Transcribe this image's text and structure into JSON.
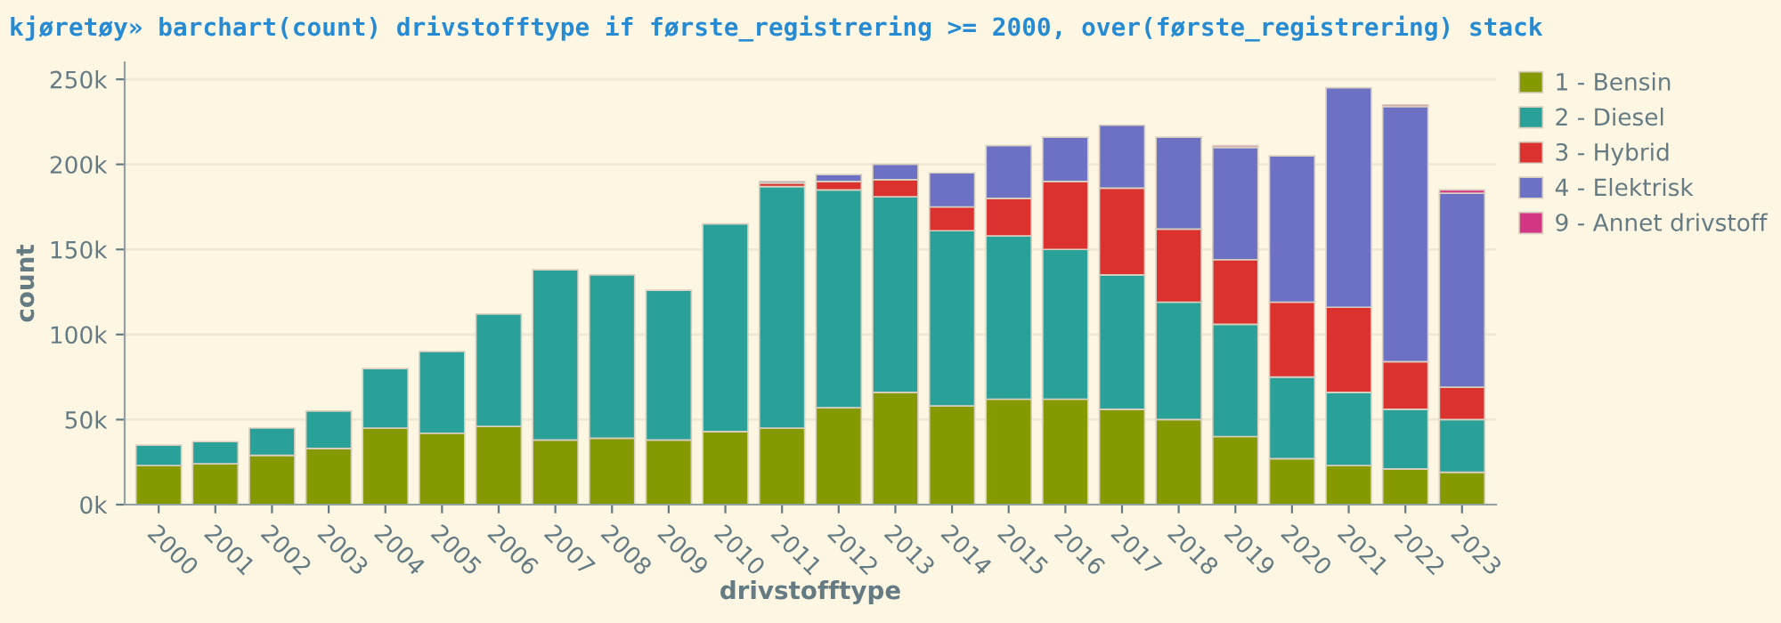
{
  "chart_data": {
    "type": "bar",
    "stacked": true,
    "title": "kjøretøy» barchart(count) drivstofftype if første_registrering >= 2000, over(første_registrering) stack",
    "xlabel": "drivstofftype",
    "ylabel": "count",
    "categories": [
      "2000",
      "2001",
      "2002",
      "2003",
      "2004",
      "2005",
      "2006",
      "2007",
      "2008",
      "2009",
      "2010",
      "2011",
      "2012",
      "2013",
      "2014",
      "2015",
      "2016",
      "2017",
      "2018",
      "2019",
      "2020",
      "2021",
      "2022",
      "2023"
    ],
    "series": [
      {
        "name": "1 - Bensin",
        "color": "#859900",
        "values": [
          23,
          24,
          29,
          33,
          45,
          42,
          46,
          38,
          39,
          38,
          43,
          45,
          57,
          66,
          58,
          62,
          62,
          56,
          50,
          40,
          27,
          23,
          21,
          19
        ]
      },
      {
        "name": "2 - Diesel",
        "color": "#2aa198",
        "values": [
          12,
          13,
          16,
          22,
          35,
          48,
          66,
          100,
          96,
          88,
          122,
          142,
          128,
          115,
          103,
          96,
          88,
          79,
          69,
          66,
          48,
          43,
          35,
          31
        ]
      },
      {
        "name": "3 - Hybrid",
        "color": "#dc322f",
        "values": [
          null,
          null,
          null,
          null,
          null,
          null,
          null,
          null,
          null,
          null,
          null,
          2,
          5,
          10,
          14,
          22,
          40,
          51,
          43,
          38,
          44,
          50,
          28,
          19
        ]
      },
      {
        "name": "4 - Elektrisk",
        "color": "#6c71c4",
        "values": [
          null,
          null,
          null,
          null,
          null,
          null,
          null,
          null,
          null,
          null,
          null,
          1,
          4,
          9,
          20,
          31,
          26,
          37,
          54,
          66,
          86,
          129,
          150,
          114
        ]
      },
      {
        "name": "9 - Annet drivstoff",
        "color": "#d33682",
        "values": [
          null,
          null,
          null,
          null,
          null,
          null,
          null,
          null,
          null,
          null,
          null,
          null,
          null,
          null,
          null,
          null,
          null,
          null,
          null,
          1,
          null,
          null,
          1,
          2
        ]
      }
    ],
    "ylim": [
      0,
      260
    ],
    "yticks": [
      {
        "value": 0,
        "label": "0k"
      },
      {
        "value": 50,
        "label": "50k"
      },
      {
        "value": 100,
        "label": "100k"
      },
      {
        "value": 150,
        "label": "150k"
      },
      {
        "value": 200,
        "label": "200k"
      },
      {
        "value": 250,
        "label": "250k"
      }
    ],
    "grid": "y",
    "legend": "top right"
  }
}
